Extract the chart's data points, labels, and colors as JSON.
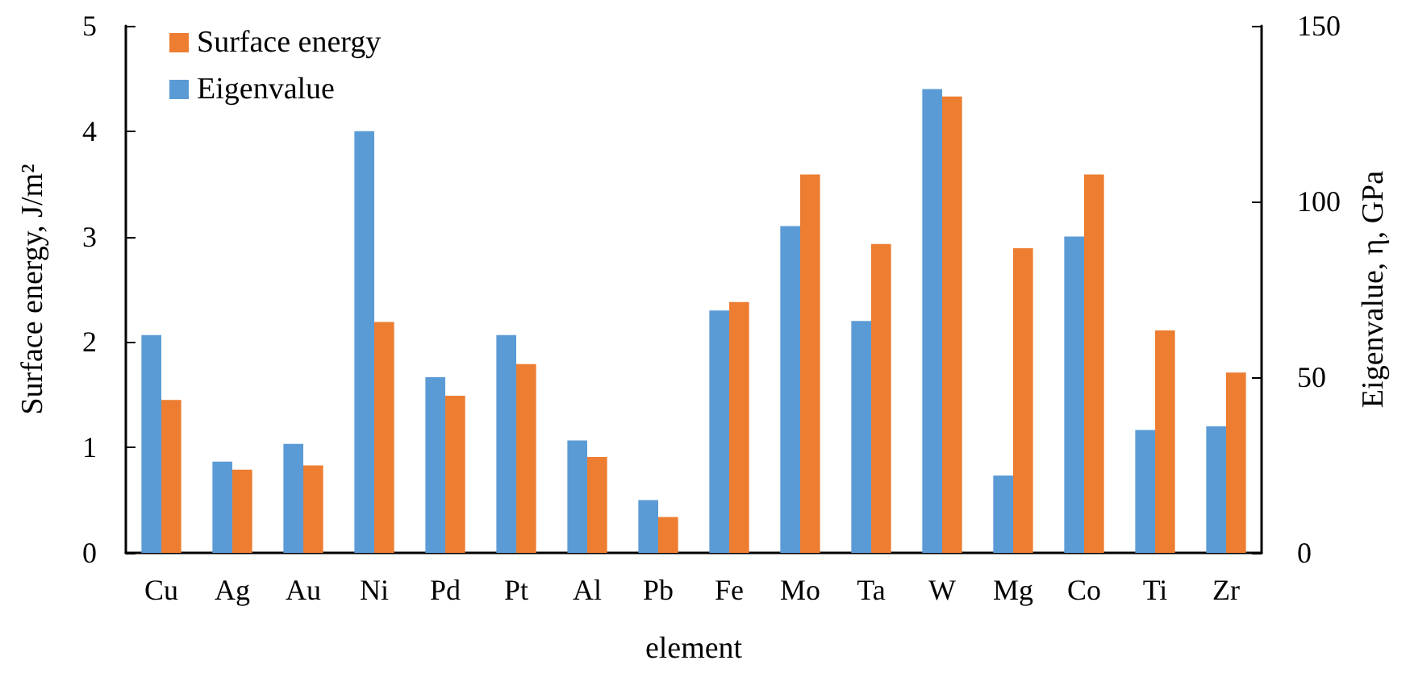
{
  "chart_data": {
    "type": "bar",
    "categories": [
      "Cu",
      "Ag",
      "Au",
      "Ni",
      "Pd",
      "Pt",
      "Al",
      "Pb",
      "Fe",
      "Mo",
      "Ta",
      "W",
      "Mg",
      "Co",
      "Ti",
      "Zr"
    ],
    "series": [
      {
        "name": "Eigenvalue",
        "color": "#5b9bd5",
        "axis": "y2",
        "values": [
          62,
          26,
          31,
          120,
          50,
          62,
          32,
          15,
          69,
          93,
          66,
          132,
          22,
          90,
          35,
          36
        ]
      },
      {
        "name": "Surface energy",
        "color": "#ed7d31",
        "values": [
          1.45,
          0.79,
          0.83,
          2.19,
          1.49,
          1.79,
          0.91,
          0.34,
          2.38,
          3.59,
          2.93,
          4.33,
          2.89,
          3.59,
          2.11,
          1.71
        ]
      }
    ],
    "xlabel": "element",
    "ylabel": "Surface energy, J/m²",
    "y2label": "Eigenvalue, η, GPa",
    "ylim": [
      0,
      5
    ],
    "yticks": [
      0,
      1,
      2,
      3,
      4,
      5
    ],
    "y2lim": [
      0,
      150
    ],
    "y2ticks": [
      0,
      50,
      100,
      150
    ],
    "grid": false,
    "legend": "top left"
  }
}
